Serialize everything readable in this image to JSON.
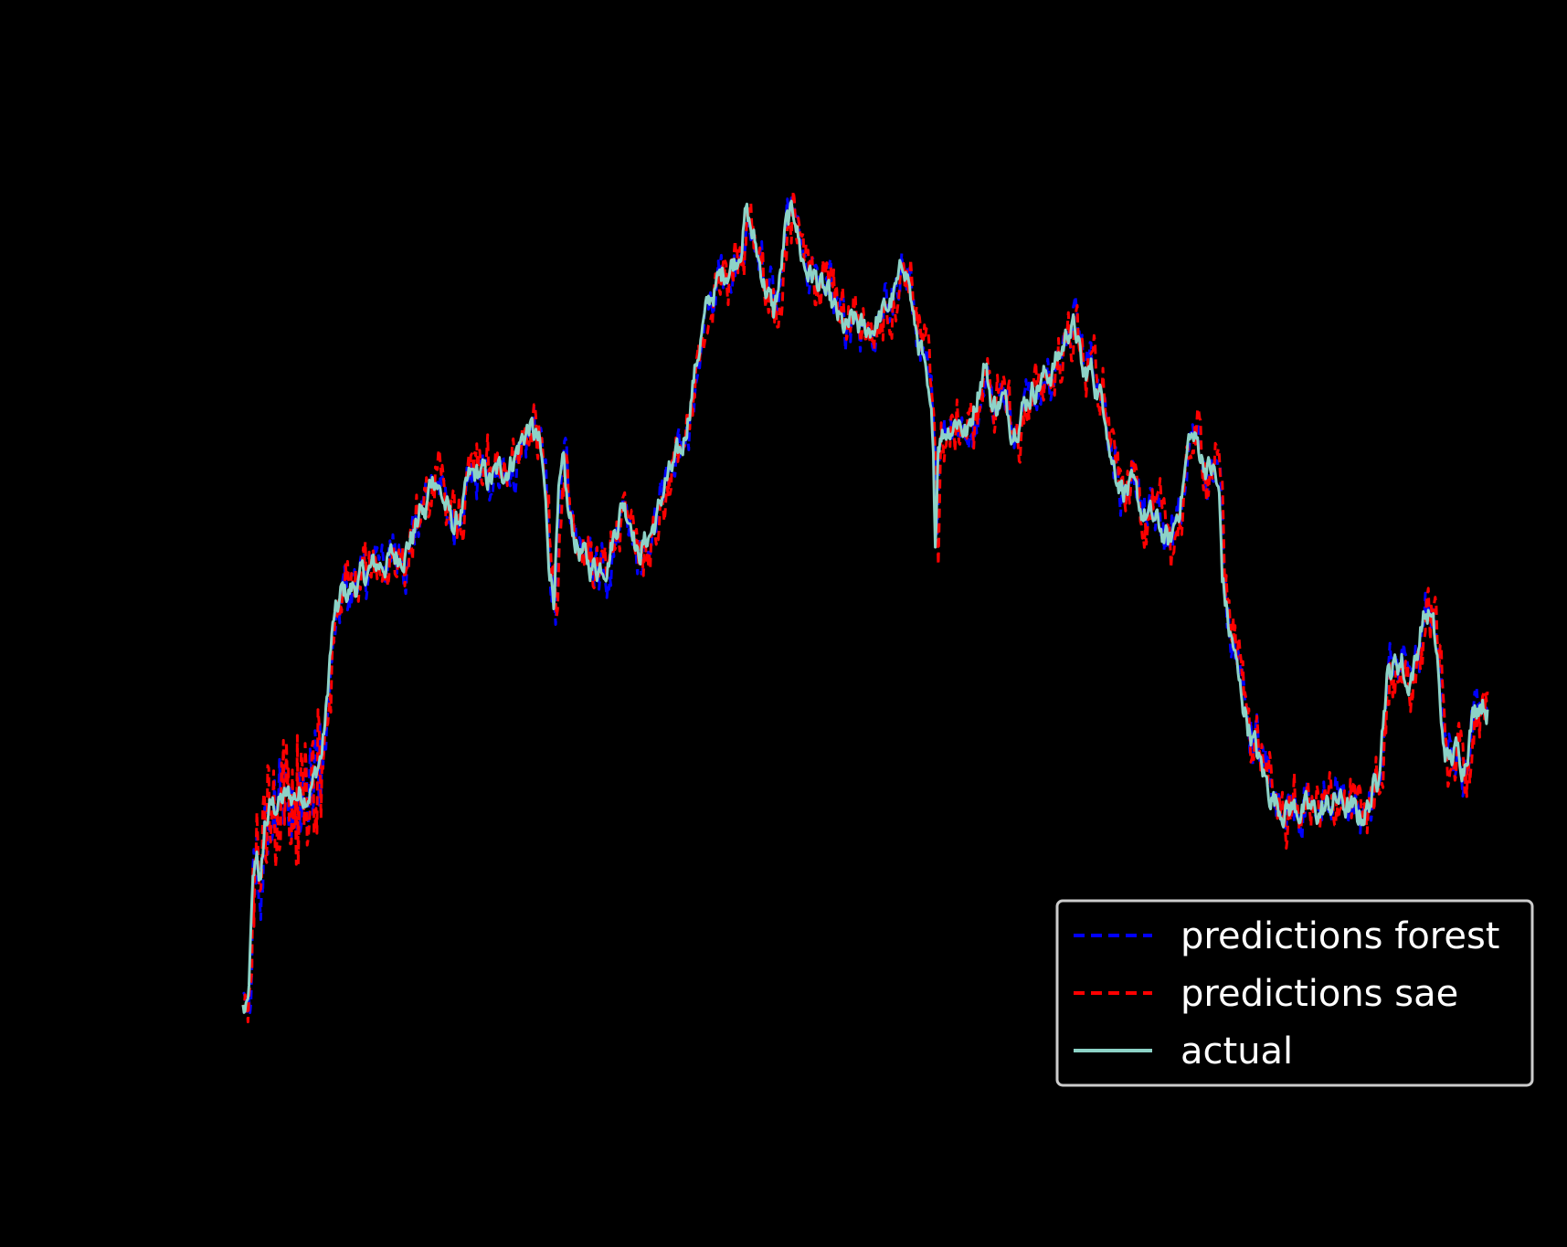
{
  "chart_data": {
    "type": "line",
    "title": "",
    "xlabel": "",
    "ylabel": "",
    "x_range": [
      0,
      1370
    ],
    "ylim": [
      0,
      100
    ],
    "grid": false,
    "legend": {
      "placement": "lower-right",
      "entries": [
        {
          "name": "predictions forest",
          "color": "#0000ff",
          "style": "dashed"
        },
        {
          "name": "predictions sae",
          "color": "#ff0000",
          "style": "dashed"
        },
        {
          "name": "actual",
          "color": "#8dd3c7",
          "style": "solid"
        }
      ]
    },
    "background_color": "#000000",
    "actual_anchors": [
      [
        0,
        5.5
      ],
      [
        3,
        4.8
      ],
      [
        5,
        5.2
      ],
      [
        8,
        13
      ],
      [
        10,
        18
      ],
      [
        14,
        22
      ],
      [
        18,
        18.5
      ],
      [
        22,
        25
      ],
      [
        28,
        27
      ],
      [
        35,
        27.5
      ],
      [
        45,
        28
      ],
      [
        55,
        28.5
      ],
      [
        65,
        29
      ],
      [
        72,
        30
      ],
      [
        80,
        33
      ],
      [
        85,
        38
      ],
      [
        88,
        43
      ],
      [
        92,
        47
      ],
      [
        96,
        48
      ],
      [
        100,
        50
      ],
      [
        105,
        50
      ],
      [
        115,
        51
      ],
      [
        125,
        52
      ],
      [
        135,
        53
      ],
      [
        145,
        53.5
      ],
      [
        155,
        54
      ],
      [
        165,
        55
      ],
      [
        175,
        57
      ],
      [
        180,
        59
      ],
      [
        185,
        58
      ],
      [
        190,
        62
      ],
      [
        195,
        63
      ],
      [
        200,
        61
      ],
      [
        210,
        58
      ],
      [
        215,
        57
      ],
      [
        225,
        60
      ],
      [
        230,
        62
      ],
      [
        240,
        63
      ],
      [
        250,
        62
      ],
      [
        260,
        63
      ],
      [
        270,
        64
      ],
      [
        280,
        66
      ],
      [
        290,
        68
      ],
      [
        295,
        67
      ],
      [
        300,
        66
      ],
      [
        305,
        62
      ],
      [
        310,
        54
      ],
      [
        315,
        50
      ],
      [
        320,
        60
      ],
      [
        325,
        63
      ],
      [
        330,
        58
      ],
      [
        340,
        55
      ],
      [
        350,
        53
      ],
      [
        360,
        53
      ],
      [
        370,
        54
      ],
      [
        380,
        58
      ],
      [
        385,
        60
      ],
      [
        395,
        58
      ],
      [
        400,
        54
      ],
      [
        410,
        56
      ],
      [
        420,
        58
      ],
      [
        428,
        62
      ],
      [
        435,
        63
      ],
      [
        445,
        65
      ],
      [
        455,
        72
      ],
      [
        465,
        78
      ],
      [
        475,
        82
      ],
      [
        480,
        83
      ],
      [
        490,
        85
      ],
      [
        500,
        86
      ],
      [
        505,
        88
      ],
      [
        510,
        91
      ],
      [
        515,
        89
      ],
      [
        520,
        87
      ],
      [
        525,
        85
      ],
      [
        530,
        83
      ],
      [
        538,
        80
      ],
      [
        545,
        84
      ],
      [
        550,
        89
      ],
      [
        555,
        90
      ],
      [
        560,
        91
      ],
      [
        565,
        87
      ],
      [
        570,
        85
      ],
      [
        580,
        84
      ],
      [
        590,
        82
      ],
      [
        600,
        80
      ],
      [
        610,
        78
      ],
      [
        620,
        79
      ],
      [
        630,
        78
      ],
      [
        640,
        79
      ],
      [
        650,
        80
      ],
      [
        660,
        82
      ],
      [
        665,
        83
      ],
      [
        670,
        86
      ],
      [
        675,
        84
      ],
      [
        680,
        79
      ],
      [
        688,
        76
      ],
      [
        695,
        70
      ],
      [
        700,
        66
      ],
      [
        702,
        55
      ],
      [
        705,
        67
      ],
      [
        715,
        68
      ],
      [
        725,
        69
      ],
      [
        735,
        67
      ],
      [
        745,
        72
      ],
      [
        752,
        75
      ],
      [
        760,
        70
      ],
      [
        770,
        71
      ],
      [
        780,
        68
      ],
      [
        790,
        70
      ],
      [
        800,
        72
      ],
      [
        810,
        73
      ],
      [
        820,
        74
      ],
      [
        830,
        76
      ],
      [
        838,
        79
      ],
      [
        845,
        78
      ],
      [
        852,
        73
      ],
      [
        860,
        74
      ],
      [
        870,
        71
      ],
      [
        875,
        70
      ],
      [
        880,
        65
      ],
      [
        890,
        62
      ],
      [
        900,
        61
      ],
      [
        910,
        59
      ],
      [
        920,
        58
      ],
      [
        930,
        57
      ],
      [
        940,
        55
      ],
      [
        950,
        60
      ],
      [
        955,
        63
      ],
      [
        960,
        67
      ],
      [
        968,
        66
      ],
      [
        975,
        64
      ],
      [
        985,
        63
      ],
      [
        990,
        60
      ],
      [
        993,
        52
      ],
      [
        1000,
        46
      ],
      [
        1005,
        44
      ],
      [
        1010,
        40
      ],
      [
        1015,
        38
      ],
      [
        1020,
        36
      ],
      [
        1030,
        32
      ],
      [
        1040,
        29
      ],
      [
        1050,
        27.5
      ],
      [
        1060,
        27
      ],
      [
        1070,
        27
      ],
      [
        1080,
        26.5
      ],
      [
        1090,
        26.5
      ],
      [
        1100,
        27
      ],
      [
        1110,
        28
      ],
      [
        1120,
        27
      ],
      [
        1130,
        26
      ],
      [
        1140,
        27
      ],
      [
        1150,
        30
      ],
      [
        1155,
        36
      ],
      [
        1160,
        41
      ],
      [
        1165,
        42
      ],
      [
        1175,
        43
      ],
      [
        1180,
        40
      ],
      [
        1190,
        43
      ],
      [
        1195,
        47
      ],
      [
        1203,
        48
      ],
      [
        1207,
        46
      ],
      [
        1212,
        42
      ],
      [
        1215,
        35
      ],
      [
        1222,
        32
      ],
      [
        1230,
        33
      ],
      [
        1238,
        32
      ],
      [
        1245,
        36
      ],
      [
        1250,
        38
      ],
      [
        1255,
        39
      ],
      [
        1262,
        38
      ]
    ]
  }
}
